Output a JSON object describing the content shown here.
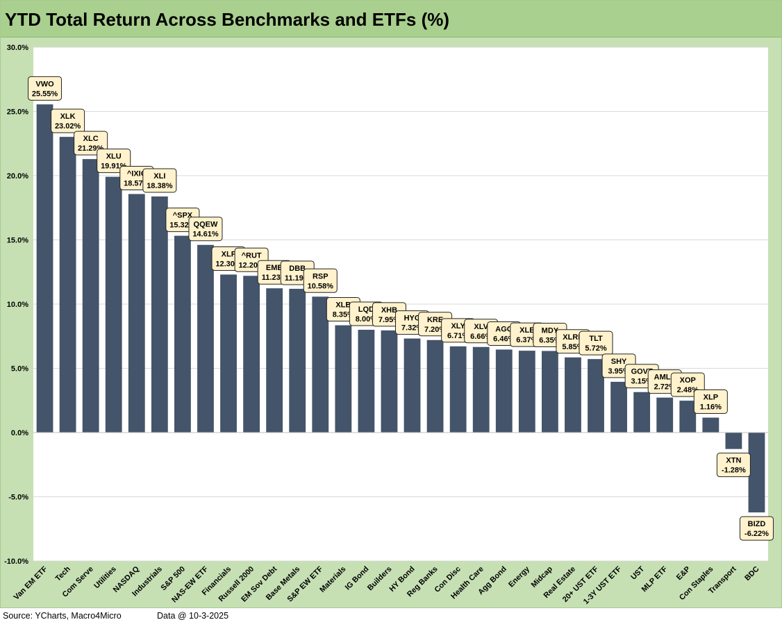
{
  "title": "YTD Total Return Across Benchmarks and ETFs (%)",
  "footer": {
    "source": "Source: YCharts, Macro4Micro",
    "date": "Data @ 10-3-2025"
  },
  "colors": {
    "bar": "#44546a",
    "plot_bg": "#ffffff",
    "frame_bg": "#c6e0b4",
    "title_bg": "#a9d08e",
    "label_bg": "#fff2cc"
  },
  "chart_data": {
    "type": "bar",
    "title": "YTD Total Return Across Benchmarks and ETFs (%)",
    "xlabel": "",
    "ylabel": "",
    "ylim": [
      -10,
      30
    ],
    "yticks": [
      -10,
      -5,
      0,
      5,
      10,
      15,
      20,
      25,
      30
    ],
    "ytick_labels": [
      "-10.0%",
      "-5.0%",
      "0.0%",
      "5.0%",
      "10.0%",
      "15.0%",
      "20.0%",
      "25.0%",
      "30.0%"
    ],
    "grid": true,
    "categories": [
      "Van EM ETF",
      "Tech",
      "Com Serve",
      "Utilities",
      "NASDAQ",
      "Industrials",
      "S&P 500",
      "NAS-EW ETF",
      "Financials",
      "Russell 2000",
      "EM Sov Debt",
      "Base Metals",
      "S&P EW ETF",
      "Materials",
      "IG Bond",
      "Builders",
      "HY Bond",
      "Reg Banks",
      "Con Disc",
      "Health Care",
      "Agg Bond",
      "Energy",
      "Midcap",
      "Real Estate",
      "20+ UST ETF",
      "1-3Y UST ETF",
      "UST",
      "MLP ETF",
      "E&P",
      "Con Staples",
      "Transport",
      "BDC"
    ],
    "tickers": [
      "VWO",
      "XLK",
      "XLC",
      "XLU",
      "^IXIC",
      "XLI",
      "^SPX",
      "QQEW",
      "XLF",
      "^RUT",
      "EMB",
      "DBB",
      "RSP",
      "XLB",
      "LQD",
      "XHB",
      "HYG",
      "KRE",
      "XLY",
      "XLV",
      "AGG",
      "XLE",
      "MDY",
      "XLRE",
      "TLT",
      "SHY",
      "GOVT",
      "AMLP",
      "XOP",
      "XLP",
      "XTN",
      "BIZD"
    ],
    "value_labels": [
      "25.55%",
      "23.02%",
      "21.29%",
      "19.91%",
      "18.57%",
      "18.38%",
      "15.32%",
      "14.61%",
      "12.30%",
      "12.20%",
      "11.23%",
      "11.19%",
      "10.58%",
      "8.35%",
      "8.00%",
      "7.95%",
      "7.32%",
      "7.20%",
      "6.71%",
      "6.66%",
      "6.46%",
      "6.37%",
      "6.35%",
      "5.85%",
      "5.72%",
      "3.95%",
      "3.15%",
      "2.72%",
      "2.48%",
      "1.16%",
      "-1.28%",
      "-6.22%"
    ],
    "values": [
      25.55,
      23.02,
      21.29,
      19.91,
      18.57,
      18.38,
      15.32,
      14.61,
      12.3,
      12.2,
      11.23,
      11.19,
      10.58,
      8.35,
      8.0,
      7.95,
      7.32,
      7.2,
      6.71,
      6.66,
      6.46,
      6.37,
      6.35,
      5.85,
      5.72,
      3.95,
      3.15,
      2.72,
      2.48,
      1.16,
      -1.28,
      -6.22
    ]
  }
}
